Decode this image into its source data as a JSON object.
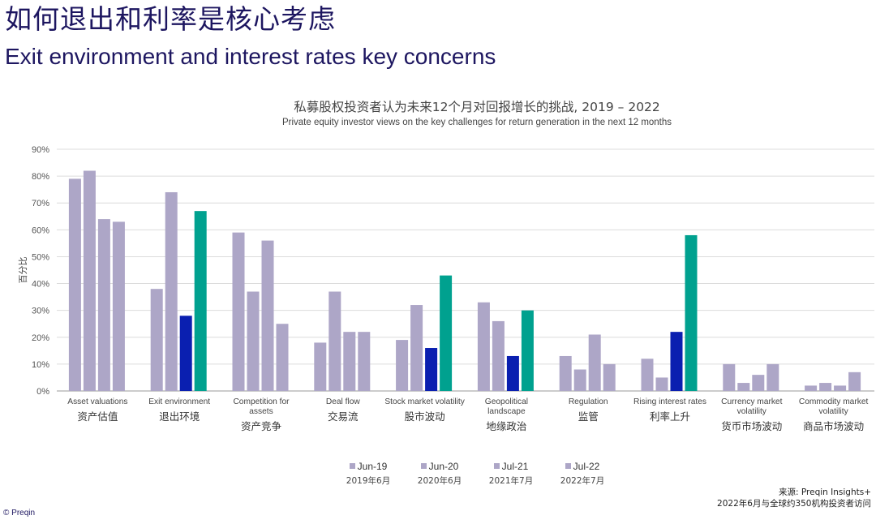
{
  "header": {
    "title_cn": "如何退出和利率是核心考虑",
    "title_en": "Exit environment and interest rates key concerns"
  },
  "source": {
    "line1": "来源: Preqin Insights+",
    "line2": "2022年6月与全球约350机构投资者访问"
  },
  "footer": {
    "copyright": "© Preqin"
  },
  "legend": [
    {
      "label": "Jun-19",
      "label_cn": "2019年6月",
      "color": "#ada6c7"
    },
    {
      "label": "Jun-20",
      "label_cn": "2020年6月",
      "color": "#ada6c7"
    },
    {
      "label": "Jul-21",
      "label_cn": "2021年7月",
      "color": "#ada6c7"
    },
    {
      "label": "Jul-22",
      "label_cn": "2022年7月",
      "color": "#ada6c7"
    }
  ],
  "chart_data": {
    "type": "bar",
    "title": "私募股权投资者认为未来12个月对回报增长的挑战, 2019 – 2022",
    "subtitle": "Private equity investor views on the key challenges for return generation in the next 12 months",
    "ylabel": "百分比",
    "ylim": [
      0,
      90
    ],
    "yticks": [
      "0%",
      "10%",
      "20%",
      "30%",
      "40%",
      "50%",
      "60%",
      "70%",
      "80%",
      "90%"
    ],
    "grid": true,
    "colors": {
      "muted": "#ada6c7",
      "jul21_highlight": "#0a1fb0",
      "jul22_highlight": "#00a18f",
      "grid": "#dcdcdc",
      "axis": "#9a9a9a"
    },
    "categories": [
      {
        "en": [
          "Asset valuations"
        ],
        "cn": "资产估值",
        "values": [
          79,
          82,
          64,
          63
        ],
        "highlight": false
      },
      {
        "en": [
          "Exit environment"
        ],
        "cn": "退出环境",
        "values": [
          38,
          74,
          28,
          67
        ],
        "highlight": true
      },
      {
        "en": [
          "Competition for",
          "assets"
        ],
        "cn": "资产竞争",
        "values": [
          59,
          37,
          56,
          25
        ],
        "highlight": false
      },
      {
        "en": [
          "Deal flow"
        ],
        "cn": "交易流",
        "values": [
          18,
          37,
          22,
          22
        ],
        "highlight": false
      },
      {
        "en": [
          "Stock market volatility"
        ],
        "cn": "股市波动",
        "values": [
          19,
          32,
          16,
          43
        ],
        "highlight": true
      },
      {
        "en": [
          "Geopolitical",
          "landscape"
        ],
        "cn": "地缘政治",
        "values": [
          33,
          26,
          13,
          30
        ],
        "highlight": true
      },
      {
        "en": [
          "Regulation"
        ],
        "cn": "监管",
        "values": [
          13,
          8,
          21,
          10
        ],
        "highlight": false
      },
      {
        "en": [
          "Rising interest rates"
        ],
        "cn": "利率上升",
        "values": [
          12,
          5,
          22,
          58
        ],
        "highlight": true
      },
      {
        "en": [
          "Currency market",
          "volatility"
        ],
        "cn": "货币市场波动",
        "values": [
          10,
          3,
          6,
          10
        ],
        "highlight": false
      },
      {
        "en": [
          "Commodity market",
          "volatility"
        ],
        "cn": "商品市场波动",
        "values": [
          2,
          3,
          2,
          7
        ],
        "highlight": false
      }
    ]
  }
}
